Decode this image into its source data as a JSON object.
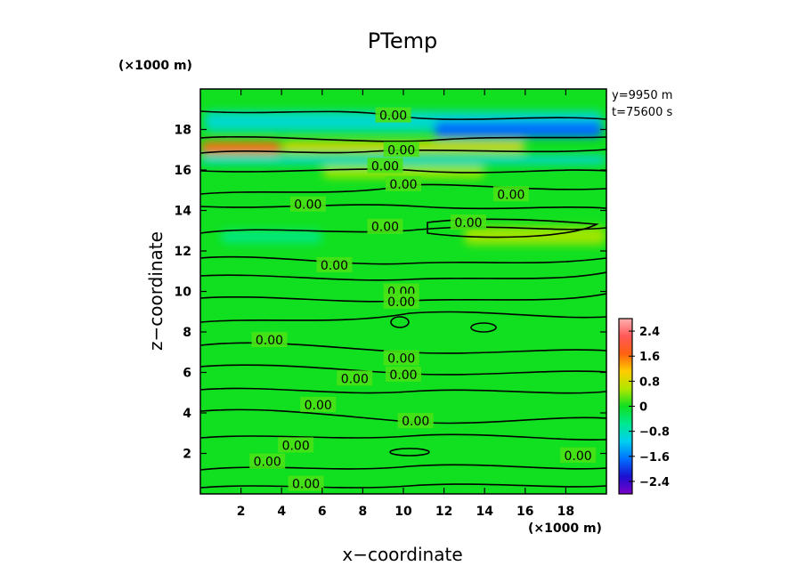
{
  "chart_data": {
    "type": "heatmap",
    "title": "PTemp",
    "xlabel": "x−coordinate",
    "ylabel": "z−coordinate",
    "x_unit": "(×1000 m)",
    "y_unit": "(×1000 m)",
    "xlim": [
      0,
      20
    ],
    "ylim": [
      0,
      20
    ],
    "x_ticks": [
      {
        "v": 2,
        "label": "2"
      },
      {
        "v": 4,
        "label": "4"
      },
      {
        "v": 6,
        "label": "6"
      },
      {
        "v": 8,
        "label": "8"
      },
      {
        "v": 10,
        "label": "10"
      },
      {
        "v": 12,
        "label": "12"
      },
      {
        "v": 14,
        "label": "14"
      },
      {
        "v": 16,
        "label": "16"
      },
      {
        "v": 18,
        "label": "18"
      }
    ],
    "y_ticks": [
      {
        "v": 2,
        "label": "2"
      },
      {
        "v": 4,
        "label": "4"
      },
      {
        "v": 6,
        "label": "6"
      },
      {
        "v": 8,
        "label": "8"
      },
      {
        "v": 10,
        "label": "10"
      },
      {
        "v": 12,
        "label": "12"
      },
      {
        "v": 14,
        "label": "14"
      },
      {
        "v": 16,
        "label": "16"
      },
      {
        "v": 18,
        "label": "18"
      }
    ],
    "info": [
      "y=9950 m",
      "t=75600 s"
    ],
    "colorbar": {
      "range": [
        -2.8,
        2.8
      ],
      "ticks": [
        {
          "v": 2.4,
          "label": "2.4"
        },
        {
          "v": 1.6,
          "label": "1.6"
        },
        {
          "v": 0.8,
          "label": "0.8"
        },
        {
          "v": 0,
          "label": "0"
        },
        {
          "v": -0.8,
          "label": "−0.8"
        },
        {
          "v": -1.6,
          "label": "−1.6"
        },
        {
          "v": -2.4,
          "label": "−2.4"
        }
      ],
      "colors": [
        "#7a00c8",
        "#1a10d0",
        "#0070ff",
        "#00d0f0",
        "#00e890",
        "#10e020",
        "#b0e600",
        "#ffcc00",
        "#ff6010",
        "#ff5858",
        "#ffb0b0"
      ]
    },
    "contour_labels": [
      {
        "x": 9.5,
        "z": 18.7,
        "label": "0.00"
      },
      {
        "x": 9.9,
        "z": 17.0,
        "label": "0.00"
      },
      {
        "x": 9.1,
        "z": 16.2,
        "label": "0.00"
      },
      {
        "x": 10.0,
        "z": 15.3,
        "label": "0.00"
      },
      {
        "x": 15.3,
        "z": 14.8,
        "label": "0.00"
      },
      {
        "x": 5.3,
        "z": 14.3,
        "label": "0.00"
      },
      {
        "x": 9.1,
        "z": 13.2,
        "label": "0.00"
      },
      {
        "x": 13.2,
        "z": 13.4,
        "label": "0.00"
      },
      {
        "x": 6.6,
        "z": 11.3,
        "label": "0.00"
      },
      {
        "x": 9.9,
        "z": 10.0,
        "label": "0.00"
      },
      {
        "x": 9.9,
        "z": 9.5,
        "label": "0.00"
      },
      {
        "x": 3.4,
        "z": 7.6,
        "label": "0.00"
      },
      {
        "x": 9.9,
        "z": 6.7,
        "label": "0.00"
      },
      {
        "x": 7.6,
        "z": 5.7,
        "label": "0.00"
      },
      {
        "x": 10.0,
        "z": 5.9,
        "label": "0.00"
      },
      {
        "x": 5.8,
        "z": 4.4,
        "label": "0.00"
      },
      {
        "x": 10.6,
        "z": 3.6,
        "label": "0.00"
      },
      {
        "x": 4.7,
        "z": 2.4,
        "label": "0.00"
      },
      {
        "x": 3.3,
        "z": 1.6,
        "label": "0.00"
      },
      {
        "x": 18.6,
        "z": 1.9,
        "label": "0.00"
      },
      {
        "x": 5.2,
        "z": 0.5,
        "label": "0.00"
      }
    ],
    "anomalies": [
      {
        "x0": 0.2,
        "x1": 19.8,
        "z0": 17.9,
        "z1": 18.9,
        "value": -0.9
      },
      {
        "x0": 11.5,
        "x1": 19.8,
        "z0": 17.6,
        "z1": 18.4,
        "value": -1.7
      },
      {
        "x0": 0.0,
        "x1": 4.0,
        "z0": 16.8,
        "z1": 17.4,
        "value": 1.6
      },
      {
        "x0": 4.0,
        "x1": 16.0,
        "z0": 16.9,
        "z1": 17.4,
        "value": 0.9
      },
      {
        "x0": 0.0,
        "x1": 20.0,
        "z0": 16.3,
        "z1": 16.7,
        "value": -1.0
      },
      {
        "x0": 6.0,
        "x1": 14.0,
        "z0": 15.6,
        "z1": 16.2,
        "value": 0.5
      },
      {
        "x0": 13.0,
        "x1": 20.0,
        "z0": 12.3,
        "z1": 13.2,
        "value": 0.5
      },
      {
        "x0": 1.0,
        "x1": 6.0,
        "z0": 12.4,
        "z1": 13.0,
        "value": -0.5
      }
    ]
  }
}
